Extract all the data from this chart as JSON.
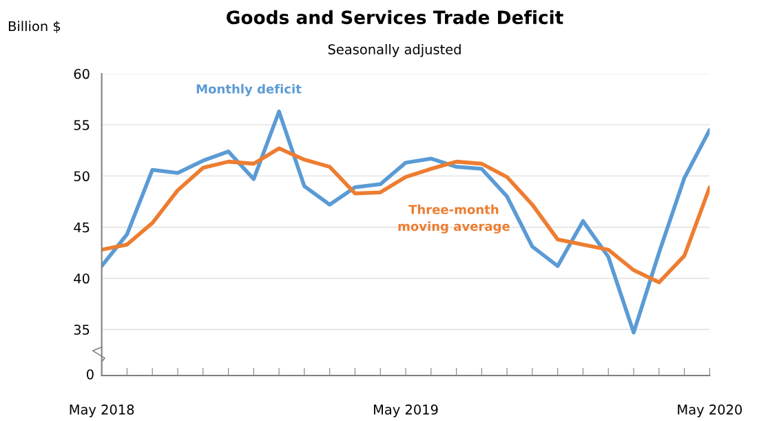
{
  "chart_data": {
    "type": "line",
    "title": "Goods and Services Trade Deficit",
    "subtitle": "Seasonally adjusted",
    "ylabel": "Billion $",
    "categories": [
      "May 2018",
      null,
      null,
      null,
      null,
      null,
      null,
      null,
      null,
      null,
      null,
      null,
      "May 2019",
      null,
      null,
      null,
      null,
      null,
      null,
      null,
      null,
      null,
      null,
      null,
      "May 2020"
    ],
    "series": [
      {
        "name": "Monthly deficit",
        "color": "#5b9bd5",
        "values": [
          41.2,
          44.3,
          50.6,
          50.3,
          51.5,
          52.4,
          49.7,
          56.3,
          49.0,
          47.2,
          48.9,
          49.2,
          51.3,
          51.7,
          50.9,
          50.7,
          48.0,
          43.1,
          41.2,
          45.6,
          42.1,
          34.7,
          42.5,
          49.8,
          54.5
        ]
      },
      {
        "name": "Three-month\nmoving average",
        "color": "#ed7d31",
        "values": [
          42.8,
          43.3,
          45.4,
          48.6,
          50.8,
          51.4,
          51.2,
          52.7,
          51.6,
          50.9,
          48.3,
          48.4,
          49.9,
          50.7,
          51.4,
          51.2,
          49.9,
          47.2,
          43.8,
          43.3,
          42.8,
          40.8,
          39.6,
          42.2,
          48.9
        ]
      }
    ],
    "ylim": [
      30.5,
      60
    ],
    "yticks": [
      35,
      40,
      45,
      50,
      55,
      60
    ],
    "annotations": [
      "0"
    ],
    "grid": "y",
    "legend": false,
    "marker": "none",
    "line_style": "solid"
  }
}
